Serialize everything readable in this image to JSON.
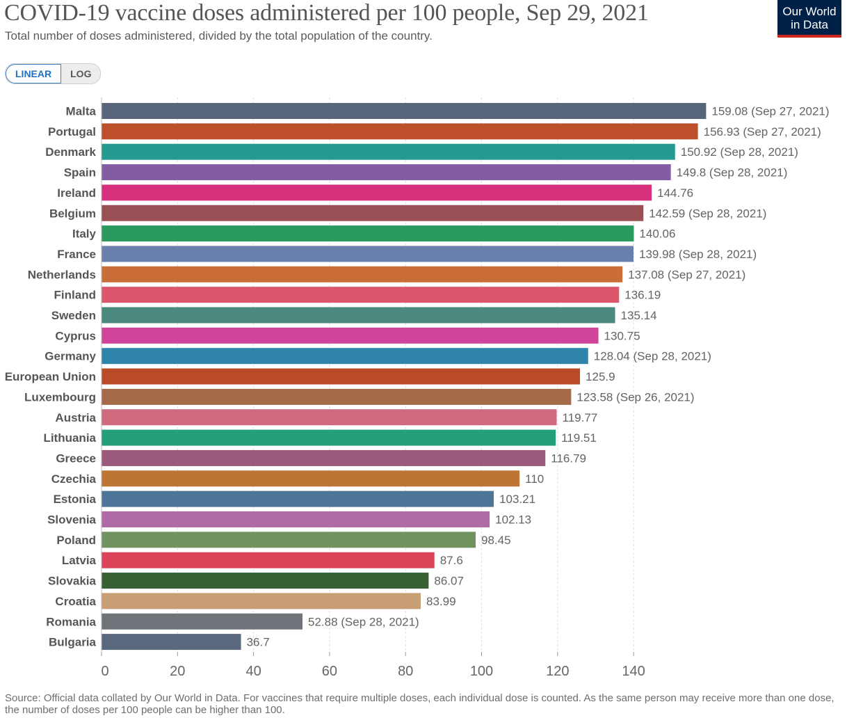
{
  "header": {
    "title": "COVID-19 vaccine doses administered per 100 people, Sep 29, 2021",
    "subtitle": "Total number of doses administered, divided by the total population of the country.",
    "logo_line1": "Our World",
    "logo_line2": "in Data",
    "logo_bg": "#002147",
    "logo_accent": "#ce261e"
  },
  "controls": {
    "linear_label": "LINEAR",
    "log_label": "LOG",
    "active": "LINEAR"
  },
  "chart_data": {
    "type": "bar",
    "orientation": "horizontal",
    "xlim": [
      0,
      160
    ],
    "xticks": [
      0,
      20,
      40,
      60,
      80,
      100,
      120,
      140
    ],
    "grid": "vertical dashed",
    "bars": [
      {
        "label": "Malta",
        "value": 159.08,
        "value_label": "159.08 (Sep 27, 2021)",
        "color": "#58657a"
      },
      {
        "label": "Portugal",
        "value": 156.93,
        "value_label": "156.93 (Sep 27, 2021)",
        "color": "#bd4f2b"
      },
      {
        "label": "Denmark",
        "value": 150.92,
        "value_label": "150.92 (Sep 28, 2021)",
        "color": "#249a91"
      },
      {
        "label": "Spain",
        "value": 149.8,
        "value_label": "149.8 (Sep 28, 2021)",
        "color": "#835ca3"
      },
      {
        "label": "Ireland",
        "value": 144.76,
        "value_label": "144.76",
        "color": "#d6307c"
      },
      {
        "label": "Belgium",
        "value": 142.59,
        "value_label": "142.59 (Sep 28, 2021)",
        "color": "#9a4f55"
      },
      {
        "label": "Italy",
        "value": 140.06,
        "value_label": "140.06",
        "color": "#2a9a5e"
      },
      {
        "label": "France",
        "value": 139.98,
        "value_label": "139.98 (Sep 28, 2021)",
        "color": "#6880ab"
      },
      {
        "label": "Netherlands",
        "value": 137.08,
        "value_label": "137.08 (Sep 27, 2021)",
        "color": "#cb6d38"
      },
      {
        "label": "Finland",
        "value": 136.19,
        "value_label": "136.19",
        "color": "#dc576b"
      },
      {
        "label": "Sweden",
        "value": 135.14,
        "value_label": "135.14",
        "color": "#4b887d"
      },
      {
        "label": "Cyprus",
        "value": 130.75,
        "value_label": "130.75",
        "color": "#d0449b"
      },
      {
        "label": "Germany",
        "value": 128.04,
        "value_label": "128.04 (Sep 28, 2021)",
        "color": "#2f84ab"
      },
      {
        "label": "European Union",
        "value": 125.9,
        "value_label": "125.9",
        "color": "#bb4b26"
      },
      {
        "label": "Luxembourg",
        "value": 123.58,
        "value_label": "123.58 (Sep 26, 2021)",
        "color": "#a46a4a"
      },
      {
        "label": "Austria",
        "value": 119.77,
        "value_label": "119.77",
        "color": "#cf6a7f"
      },
      {
        "label": "Lithuania",
        "value": 119.51,
        "value_label": "119.51",
        "color": "#23a07a"
      },
      {
        "label": "Greece",
        "value": 116.79,
        "value_label": "116.79",
        "color": "#9a5a7c"
      },
      {
        "label": "Czechia",
        "value": 110,
        "value_label": "110",
        "color": "#bd7534"
      },
      {
        "label": "Estonia",
        "value": 103.21,
        "value_label": "103.21",
        "color": "#4d7597"
      },
      {
        "label": "Slovenia",
        "value": 102.13,
        "value_label": "102.13",
        "color": "#b06aa6"
      },
      {
        "label": "Poland",
        "value": 98.45,
        "value_label": "98.45",
        "color": "#71935f"
      },
      {
        "label": "Latvia",
        "value": 87.6,
        "value_label": "87.6",
        "color": "#dc4459"
      },
      {
        "label": "Slovakia",
        "value": 86.07,
        "value_label": "86.07",
        "color": "#386234"
      },
      {
        "label": "Croatia",
        "value": 83.99,
        "value_label": "83.99",
        "color": "#c89e74"
      },
      {
        "label": "Romania",
        "value": 52.88,
        "value_label": "52.88 (Sep 28, 2021)",
        "color": "#6f737a"
      },
      {
        "label": "Bulgaria",
        "value": 36.7,
        "value_label": "36.7",
        "color": "#5a687d"
      }
    ]
  },
  "footer": {
    "source": "Source: Official data collated by Our World in Data. For vaccines that require multiple doses, each individual dose is counted. As the same person may receive more than one dose, the number of doses per 100 people can be higher than 100."
  }
}
